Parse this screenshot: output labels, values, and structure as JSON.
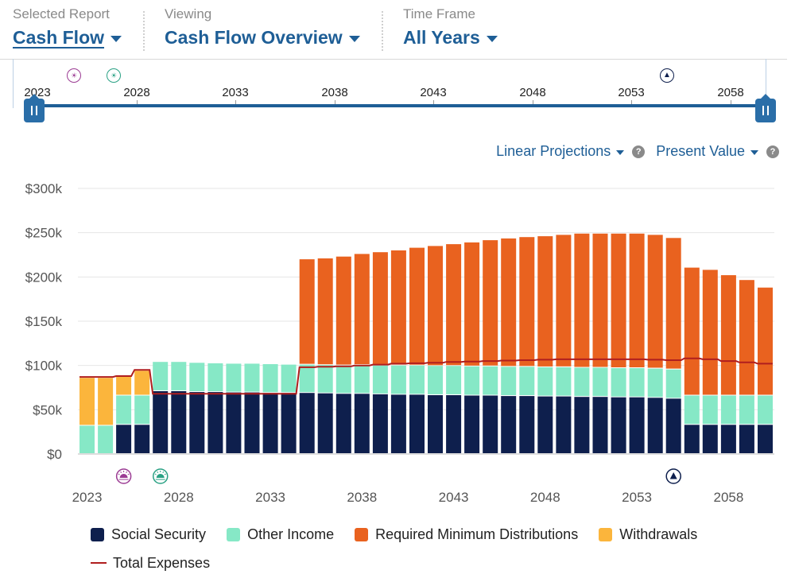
{
  "header": {
    "selected_report": {
      "label": "Selected Report",
      "value": "Cash Flow"
    },
    "viewing": {
      "label": "Viewing",
      "value": "Cash Flow Overview"
    },
    "time_frame": {
      "label": "Time Frame",
      "value": "All Years"
    }
  },
  "timeline": {
    "years": [
      "2023",
      "2028",
      "2033",
      "2038",
      "2043",
      "2048",
      "2053",
      "2058"
    ]
  },
  "options": {
    "projection": "Linear Projections",
    "value_mode": "Present Value",
    "help_glyph": "?"
  },
  "icons": {
    "marker_purple": "sun-marker-icon",
    "marker_green": "sun-marker-icon",
    "marker_navy": "triangle-marker-icon"
  },
  "colors": {
    "social_security": "#0e1f4d",
    "other_income": "#86e8c6",
    "rmd": "#e9621f",
    "withdrawals": "#fbb53c",
    "total_expenses": "#b01e1e",
    "accent": "#1e5e96"
  },
  "chart_data": {
    "type": "bar",
    "stacked": true,
    "title": "",
    "xlabel": "",
    "ylabel": "",
    "ylim": [
      0,
      300000
    ],
    "yticks": [
      0,
      50000,
      100000,
      150000,
      200000,
      250000,
      300000
    ],
    "ytick_labels": [
      "$0",
      "$50k",
      "$100k",
      "$150k",
      "$200k",
      "$250k",
      "$300k"
    ],
    "xtick_labels": [
      "2023",
      "2028",
      "2033",
      "2038",
      "2043",
      "2048",
      "2053",
      "2058"
    ],
    "categories": [
      2023,
      2024,
      2025,
      2026,
      2027,
      2028,
      2029,
      2030,
      2031,
      2032,
      2033,
      2034,
      2035,
      2036,
      2037,
      2038,
      2039,
      2040,
      2041,
      2042,
      2043,
      2044,
      2045,
      2046,
      2047,
      2048,
      2049,
      2050,
      2051,
      2052,
      2053,
      2054,
      2055,
      2056,
      2057,
      2058,
      2059,
      2060
    ],
    "series": [
      {
        "name": "Social Security",
        "values": [
          0,
          0,
          33000,
          33000,
          71000,
          71000,
          70000,
          70000,
          69500,
          69500,
          69000,
          69000,
          69000,
          68500,
          68000,
          68000,
          67500,
          67000,
          67000,
          66500,
          66500,
          66000,
          66000,
          65500,
          65500,
          65000,
          65000,
          64500,
          64500,
          64000,
          64000,
          63500,
          62500,
          33000,
          33000,
          33000,
          33000,
          33000
        ]
      },
      {
        "name": "Other Income",
        "values": [
          32000,
          32000,
          33000,
          33000,
          33000,
          33000,
          33000,
          32500,
          32500,
          32500,
          32500,
          32000,
          32000,
          32000,
          32000,
          32500,
          32500,
          33000,
          33000,
          33000,
          33000,
          33000,
          33000,
          33000,
          33000,
          33000,
          33000,
          33000,
          33000,
          33000,
          33000,
          33000,
          33000,
          33000,
          33000,
          33000,
          33000,
          33000
        ]
      },
      {
        "name": "Required Minimum Distributions",
        "values": [
          0,
          0,
          0,
          0,
          0,
          0,
          0,
          0,
          0,
          0,
          0,
          0,
          119000,
          120500,
          123000,
          125500,
          128000,
          130000,
          133000,
          135500,
          137500,
          140000,
          142500,
          145000,
          146500,
          148000,
          149500,
          151500,
          151500,
          152000,
          152000,
          151000,
          148500,
          144500,
          142000,
          136000,
          130500,
          122000
        ]
      },
      {
        "name": "Withdrawals",
        "values": [
          54000,
          54000,
          22000,
          28000,
          0,
          0,
          0,
          0,
          0,
          0,
          0,
          0,
          0,
          0,
          0,
          0,
          0,
          0,
          0,
          0,
          0,
          0,
          0,
          0,
          0,
          0,
          0,
          0,
          0,
          0,
          0,
          0,
          0,
          0,
          0,
          0,
          0,
          0
        ]
      }
    ],
    "line_series": {
      "name": "Total Expenses",
      "values": [
        87000,
        87000,
        88000,
        95000,
        68000,
        68000,
        68000,
        68000,
        68000,
        68000,
        68000,
        68000,
        98000,
        98500,
        99000,
        100000,
        101000,
        102000,
        102500,
        103000,
        104000,
        104500,
        105000,
        105500,
        106000,
        106500,
        107000,
        107000,
        107000,
        107000,
        107000,
        106500,
        106000,
        108000,
        107000,
        105000,
        103500,
        102000
      ]
    },
    "markers": [
      {
        "year": 2025,
        "icon": "sun-marker-icon",
        "color": "#9b3b93"
      },
      {
        "year": 2027,
        "icon": "sun-marker-icon",
        "color": "#2aa184"
      },
      {
        "year": 2055,
        "icon": "triangle-marker-icon",
        "color": "#0e1f4d"
      }
    ],
    "legend": [
      "Social Security",
      "Other Income",
      "Required Minimum Distributions",
      "Withdrawals",
      "Total Expenses"
    ]
  }
}
